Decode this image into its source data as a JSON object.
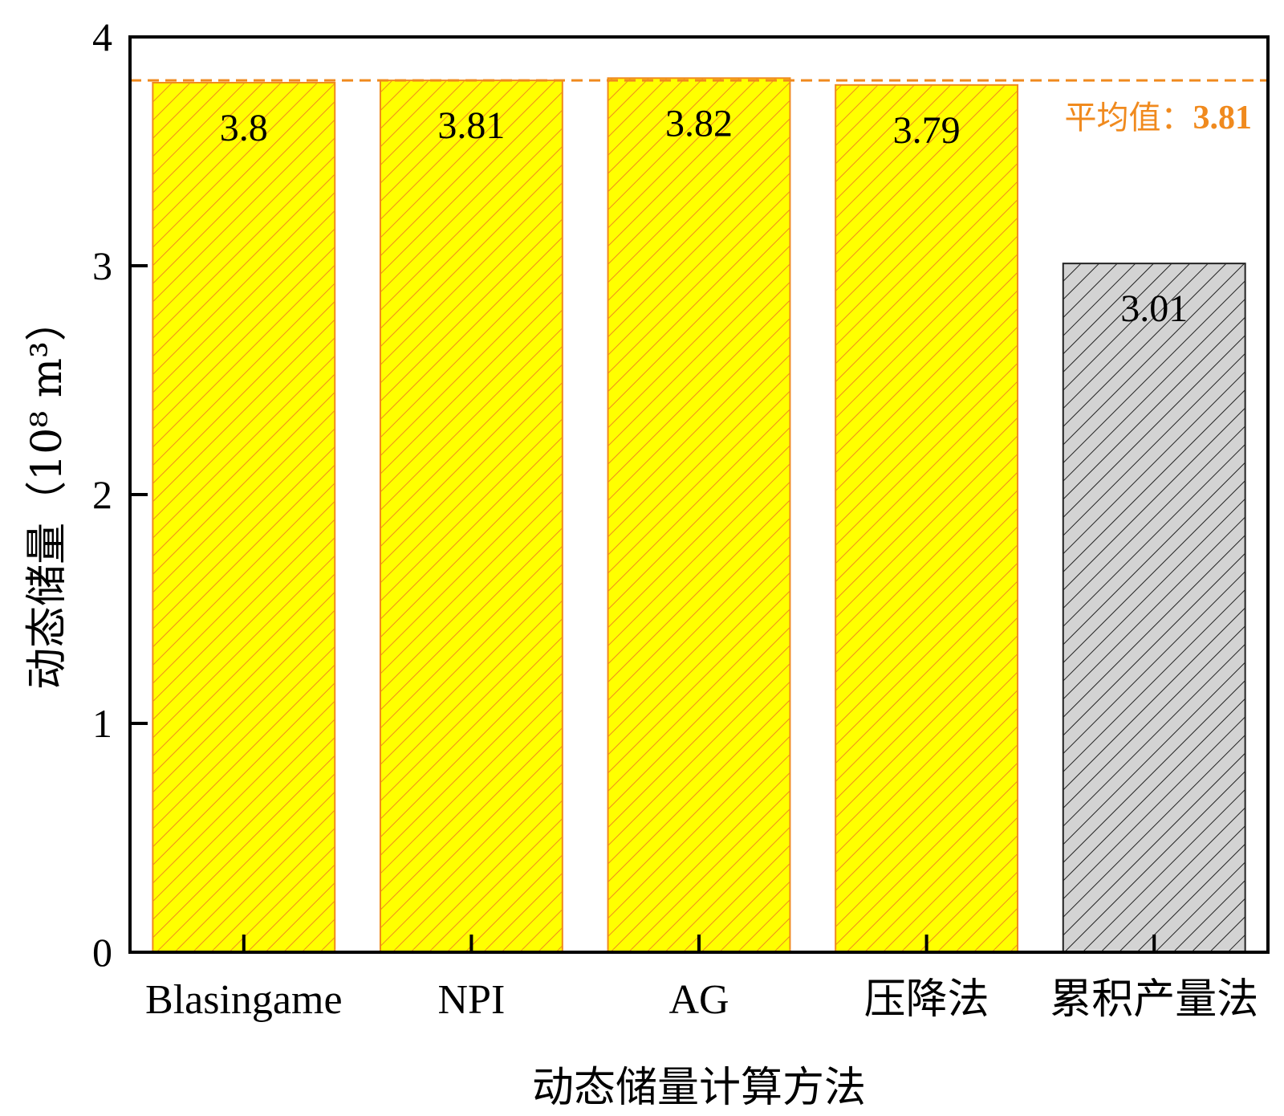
{
  "chart_data": {
    "type": "bar",
    "categories": [
      "Blasingame",
      "NPI",
      "AG",
      "压降法",
      "累积产量法"
    ],
    "values": [
      3.8,
      3.81,
      3.82,
      3.79,
      3.01
    ],
    "data_labels": [
      "3.8",
      "3.81",
      "3.82",
      "3.79",
      "3.01"
    ],
    "bar_fill_colors": [
      "#FFFF00",
      "#FFFF00",
      "#FFFF00",
      "#FFFF00",
      "#D3D3D3"
    ],
    "bar_stroke_colors": [
      "#F08A1E",
      "#F08A1E",
      "#F08A1E",
      "#F08A1E",
      "#222222"
    ],
    "xlabel": "动态储量计算方法",
    "ylabel": "动态储量（10⁸ m³）",
    "ylim": [
      0,
      4
    ],
    "yticks": [
      0,
      1,
      2,
      3,
      4
    ],
    "ytick_labels": [
      "0",
      "1",
      "2",
      "3",
      "4"
    ],
    "grid": false,
    "reference_line": {
      "value": 3.81,
      "label_text": "平均值：",
      "label_value": "3.81",
      "color": "#F08A1E",
      "style": "dashed"
    }
  }
}
